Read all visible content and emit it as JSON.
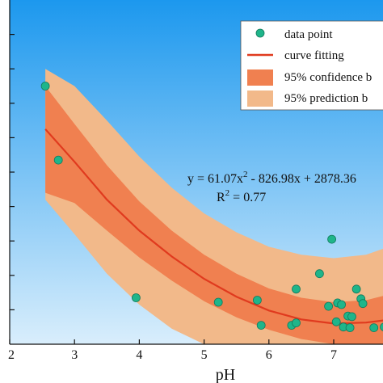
{
  "chart_data": {
    "type": "scatter",
    "xlabel": "pH",
    "ylabel": "",
    "xlim": [
      2,
      7.8
    ],
    "ylim": [
      0,
      10
    ],
    "x_ticks": [
      2,
      3,
      4,
      5,
      6,
      7
    ],
    "grid": false,
    "legend_position": "top-right",
    "colors": {
      "background_top": "#1c98ee",
      "background_bottom": "#d9eefc",
      "point": "#1fb58a",
      "curve": "#e03a1e",
      "confidence": "#f08050",
      "prediction": "#f2b98a"
    },
    "legend": [
      {
        "label": "data point",
        "kind": "point"
      },
      {
        "label": "curve fitting",
        "kind": "line"
      },
      {
        "label": "95% confidence b",
        "kind": "confidence"
      },
      {
        "label": "95% prediction b",
        "kind": "prediction"
      }
    ],
    "equation": {
      "line1_start": "y = 61.07x",
      "line1_sup": "2",
      "line1_end": " -  826.98x + 2878.36",
      "line2_start": "R",
      "line2_sup": "2",
      "line2_end": " = 0.77"
    },
    "curve": {
      "x": [
        2.55,
        3.0,
        3.5,
        4.0,
        4.5,
        5.0,
        5.5,
        6.0,
        6.5,
        7.0,
        7.5,
        7.8
      ],
      "y": [
        6.25,
        5.3,
        4.2,
        3.3,
        2.55,
        1.9,
        1.38,
        0.98,
        0.72,
        0.6,
        0.63,
        0.7
      ]
    },
    "confidence_band": {
      "x": [
        2.55,
        3.0,
        3.5,
        4.0,
        4.5,
        5.0,
        5.5,
        6.0,
        6.5,
        7.0,
        7.5,
        7.8
      ],
      "upper": [
        7.5,
        6.4,
        5.2,
        4.15,
        3.3,
        2.6,
        2.05,
        1.62,
        1.35,
        1.22,
        1.28,
        1.42
      ],
      "lower": [
        4.4,
        4.1,
        3.3,
        2.52,
        1.85,
        1.25,
        0.78,
        0.42,
        0.15,
        0.0,
        0.0,
        0.0
      ]
    },
    "prediction_band": {
      "x": [
        2.55,
        3.0,
        3.5,
        4.0,
        4.5,
        5.0,
        5.5,
        6.0,
        6.5,
        7.0,
        7.5,
        7.8
      ],
      "upper": [
        8.0,
        7.5,
        6.5,
        5.45,
        4.55,
        3.8,
        3.25,
        2.83,
        2.6,
        2.5,
        2.6,
        2.8
      ],
      "lower": [
        4.2,
        3.2,
        2.05,
        1.15,
        0.45,
        0.0,
        0.0,
        0.0,
        0.0,
        0.0,
        0.0,
        0.0
      ]
    },
    "points": [
      {
        "x": 2.55,
        "y": 7.5
      },
      {
        "x": 2.75,
        "y": 5.35
      },
      {
        "x": 3.95,
        "y": 1.35
      },
      {
        "x": 5.22,
        "y": 1.22
      },
      {
        "x": 5.82,
        "y": 1.28
      },
      {
        "x": 5.88,
        "y": 0.55
      },
      {
        "x": 6.35,
        "y": 0.55
      },
      {
        "x": 6.42,
        "y": 0.62
      },
      {
        "x": 6.42,
        "y": 1.6
      },
      {
        "x": 6.78,
        "y": 2.05
      },
      {
        "x": 6.92,
        "y": 1.1
      },
      {
        "x": 6.97,
        "y": 3.05
      },
      {
        "x": 7.04,
        "y": 0.65
      },
      {
        "x": 7.06,
        "y": 1.2
      },
      {
        "x": 7.12,
        "y": 1.15
      },
      {
        "x": 7.15,
        "y": 0.5
      },
      {
        "x": 7.22,
        "y": 0.82
      },
      {
        "x": 7.25,
        "y": 0.48
      },
      {
        "x": 7.28,
        "y": 0.8
      },
      {
        "x": 7.35,
        "y": 1.6
      },
      {
        "x": 7.42,
        "y": 1.32
      },
      {
        "x": 7.45,
        "y": 1.18
      },
      {
        "x": 7.62,
        "y": 0.48
      },
      {
        "x": 7.78,
        "y": 0.5
      }
    ]
  }
}
